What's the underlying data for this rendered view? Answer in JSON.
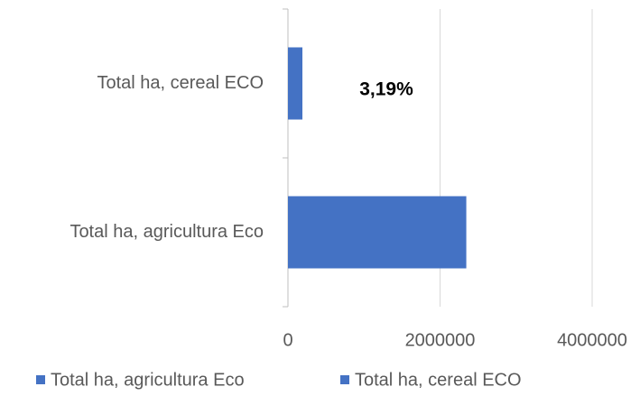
{
  "chart_data": {
    "type": "bar",
    "orientation": "horizontal",
    "categories": [
      "Total ha, agricultura Eco",
      "Total ha, cereal ECO"
    ],
    "series": [
      {
        "name": "Total ha, agricultura Eco",
        "color": "#4472c4",
        "values": [
          2345000,
          null
        ]
      },
      {
        "name": "Total ha, cereal ECO",
        "color": "#4472c4",
        "values": [
          null,
          190000
        ]
      }
    ],
    "xlim": [
      0,
      4000000
    ],
    "xticks": [
      0,
      2000000,
      4000000
    ],
    "grid": true,
    "annotations": [
      "3,19%"
    ],
    "legend": "bottom"
  }
}
